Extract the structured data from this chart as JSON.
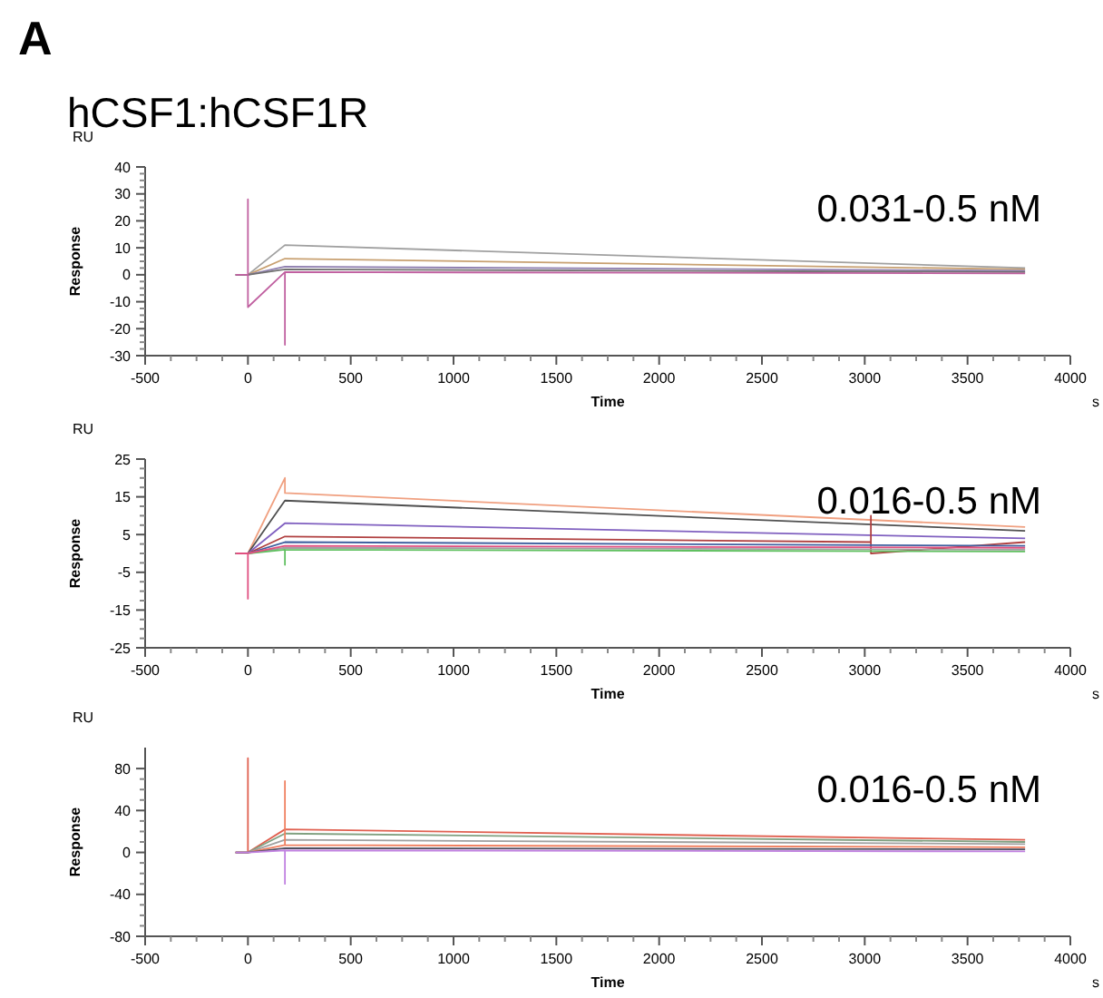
{
  "chart_data": [
    {
      "type": "line",
      "title": "hCSF1:hCSF1R",
      "xlabel": "Time",
      "ylabel": "Response",
      "annotations": [
        "RU",
        "s",
        "0.031-0.5 nM",
        "A"
      ],
      "xlim": [
        -500,
        4000
      ],
      "xticks": [
        -500,
        0,
        500,
        1000,
        1500,
        2000,
        2500,
        3000,
        3500,
        4000
      ],
      "ylim": [
        -30,
        40
      ],
      "yticks": [
        -30,
        -20,
        -10,
        0,
        10,
        20,
        30,
        40
      ],
      "line_style": "solid",
      "series": [
        {
          "color": "#a0a0a0",
          "x": [
            -60,
            0,
            180,
            3780
          ],
          "values": [
            0,
            0,
            11,
            2.5
          ]
        },
        {
          "color": "#c8a070",
          "x": [
            -60,
            0,
            180,
            3780
          ],
          "values": [
            0,
            0,
            6,
            2
          ]
        },
        {
          "color": "#9080b0",
          "x": [
            -60,
            0,
            180,
            3780
          ],
          "values": [
            0,
            0,
            3,
            1.5
          ]
        },
        {
          "color": "#707070",
          "x": [
            -60,
            0,
            180,
            3780
          ],
          "values": [
            0,
            0,
            2,
            1
          ]
        },
        {
          "color": "#c060a0",
          "x": [
            -60,
            0,
            0,
            0,
            180,
            180,
            180,
            3780
          ],
          "values": [
            0,
            0,
            28,
            -12,
            1,
            -26,
            1,
            0.5
          ]
        }
      ]
    },
    {
      "type": "line",
      "xlabel": "Time",
      "ylabel": "Response",
      "annotations": [
        "RU",
        "s",
        "0.016-0.5 nM"
      ],
      "xlim": [
        -500,
        4000
      ],
      "xticks": [
        -500,
        0,
        500,
        1000,
        1500,
        2000,
        2500,
        3000,
        3500,
        4000
      ],
      "ylim": [
        -25,
        25
      ],
      "yticks": [
        -25,
        -15,
        -5,
        5,
        15,
        25
      ],
      "line_style": "solid",
      "series": [
        {
          "color": "#f0a080",
          "x": [
            -60,
            0,
            180,
            180,
            180,
            3780
          ],
          "values": [
            0,
            0,
            20,
            16,
            16,
            7
          ]
        },
        {
          "color": "#505050",
          "x": [
            -60,
            0,
            180,
            3780
          ],
          "values": [
            0,
            0,
            14,
            6
          ]
        },
        {
          "color": "#8060c0",
          "x": [
            -60,
            0,
            180,
            3780
          ],
          "values": [
            0,
            0,
            8,
            4
          ]
        },
        {
          "color": "#b04040",
          "x": [
            -60,
            0,
            180,
            3030,
            3030,
            3030,
            3780
          ],
          "values": [
            0,
            0,
            4.5,
            3,
            10,
            0,
            3
          ]
        },
        {
          "color": "#4060a0",
          "x": [
            -60,
            0,
            180,
            3780
          ],
          "values": [
            0,
            0,
            3,
            2
          ]
        },
        {
          "color": "#a0a0a0",
          "x": [
            -60,
            0,
            180,
            3780
          ],
          "values": [
            0,
            0,
            1.5,
            1
          ]
        },
        {
          "color": "#60c060",
          "x": [
            -60,
            0,
            180,
            180,
            180,
            3780
          ],
          "values": [
            0,
            0,
            1,
            -3,
            1,
            0.5
          ]
        },
        {
          "color": "#e05080",
          "x": [
            -60,
            0,
            0,
            0,
            180,
            3780
          ],
          "values": [
            0,
            0,
            -12,
            0,
            2,
            1.5
          ]
        }
      ]
    },
    {
      "type": "line",
      "xlabel": "Time",
      "ylabel": "Response",
      "annotations": [
        "RU",
        "s",
        "0.016-0.5 nM"
      ],
      "xlim": [
        -500,
        4000
      ],
      "xticks": [
        -500,
        0,
        500,
        1000,
        1500,
        2000,
        2500,
        3000,
        3500,
        4000
      ],
      "ylim": [
        -80,
        100
      ],
      "yticks": [
        -80,
        -40,
        0,
        40,
        80
      ],
      "line_style": "solid",
      "series": [
        {
          "color": "#e06050",
          "x": [
            -60,
            0,
            0,
            0,
            180,
            3780
          ],
          "values": [
            0,
            0,
            90,
            0,
            22,
            12
          ]
        },
        {
          "color": "#80a080",
          "x": [
            -60,
            0,
            180,
            3780
          ],
          "values": [
            0,
            0,
            18,
            10
          ]
        },
        {
          "color": "#a0a0a0",
          "x": [
            -60,
            0,
            180,
            3780
          ],
          "values": [
            0,
            0,
            12,
            8
          ]
        },
        {
          "color": "#f08060",
          "x": [
            -60,
            0,
            180,
            180,
            180,
            3780
          ],
          "values": [
            0,
            0,
            7,
            68,
            7,
            5
          ]
        },
        {
          "color": "#505060",
          "x": [
            -60,
            0,
            180,
            3780
          ],
          "values": [
            0,
            0,
            4,
            3
          ]
        },
        {
          "color": "#c080e0",
          "x": [
            -60,
            0,
            180,
            180,
            180,
            3780
          ],
          "values": [
            0,
            0,
            2,
            -30,
            2,
            1
          ]
        }
      ]
    }
  ]
}
